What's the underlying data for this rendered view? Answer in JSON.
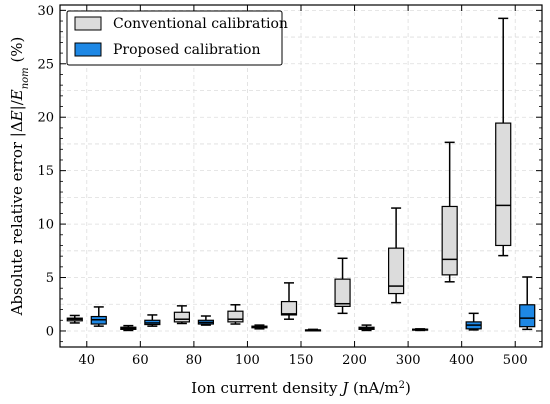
{
  "chart_data": {
    "type": "boxplot",
    "title": "",
    "xlabel": "Ion current density J (nA/m²)",
    "xlabel_parts": {
      "prefix": "Ion current density ",
      "symbol": "J",
      "suffix": " (nA/m",
      "sup": "2",
      "close": ")"
    },
    "ylabel": "Absolute relative error |ΔE|/E_nom (%)",
    "ylabel_parts": {
      "prefix": "Absolute relative error |Δ",
      "e1": "E",
      "mid": "|/",
      "e2": "E",
      "sub": "nom",
      "suffix": " (%)"
    },
    "categories": [
      "40",
      "60",
      "80",
      "100",
      "150",
      "200",
      "300",
      "400",
      "500"
    ],
    "ylim": [
      -1.5,
      30.5
    ],
    "yticks": [
      "0",
      "5",
      "10",
      "15",
      "20",
      "25",
      "30"
    ],
    "grid": true,
    "legend_position": "top-left",
    "series": [
      {
        "name": "Conventional calibration",
        "color": "#dcdcdc",
        "boxes": [
          {
            "whislo": 0.75,
            "q1": 0.95,
            "med": 1.1,
            "q3": 1.2,
            "whishi": 1.45
          },
          {
            "whislo": 0.05,
            "q1": 0.15,
            "med": 0.25,
            "q3": 0.35,
            "whishi": 0.5
          },
          {
            "whislo": 0.7,
            "q1": 0.85,
            "med": 1.1,
            "q3": 1.75,
            "whishi": 2.35
          },
          {
            "whislo": 0.65,
            "q1": 0.85,
            "med": 1.1,
            "q3": 1.85,
            "whishi": 2.45
          },
          {
            "whislo": 1.1,
            "q1": 1.5,
            "med": 1.6,
            "q3": 2.75,
            "whishi": 4.5
          },
          {
            "whislo": 1.65,
            "q1": 2.3,
            "med": 2.55,
            "q3": 4.85,
            "whishi": 6.8
          },
          {
            "whislo": 2.65,
            "q1": 3.5,
            "med": 4.2,
            "q3": 7.75,
            "whishi": 11.5
          },
          {
            "whislo": 4.6,
            "q1": 5.25,
            "med": 6.7,
            "q3": 11.65,
            "whishi": 17.65
          },
          {
            "whislo": 7.05,
            "q1": 8.0,
            "med": 11.75,
            "q3": 19.45,
            "whishi": 29.25
          }
        ]
      },
      {
        "name": "Proposed calibration",
        "color": "#1e88e5",
        "boxes": [
          {
            "whislo": 0.45,
            "q1": 0.65,
            "med": 1.05,
            "q3": 1.35,
            "whishi": 2.25
          },
          {
            "whislo": 0.45,
            "q1": 0.6,
            "med": 0.75,
            "q3": 1.0,
            "whishi": 1.5
          },
          {
            "whislo": 0.55,
            "q1": 0.65,
            "med": 0.8,
            "q3": 1.0,
            "whishi": 1.4
          },
          {
            "whislo": 0.2,
            "q1": 0.3,
            "med": 0.38,
            "q3": 0.45,
            "whishi": 0.55
          },
          {
            "whislo": 0.02,
            "q1": 0.05,
            "med": 0.08,
            "q3": 0.1,
            "whishi": 0.15
          },
          {
            "whislo": 0.05,
            "q1": 0.15,
            "med": 0.25,
            "q3": 0.35,
            "whishi": 0.55
          },
          {
            "whislo": 0.05,
            "q1": 0.1,
            "med": 0.13,
            "q3": 0.17,
            "whishi": 0.2
          },
          {
            "whislo": 0.1,
            "q1": 0.2,
            "med": 0.55,
            "q3": 0.85,
            "whishi": 1.65
          },
          {
            "whislo": 0.15,
            "q1": 0.4,
            "med": 1.2,
            "q3": 2.45,
            "whishi": 5.05
          }
        ]
      }
    ]
  }
}
